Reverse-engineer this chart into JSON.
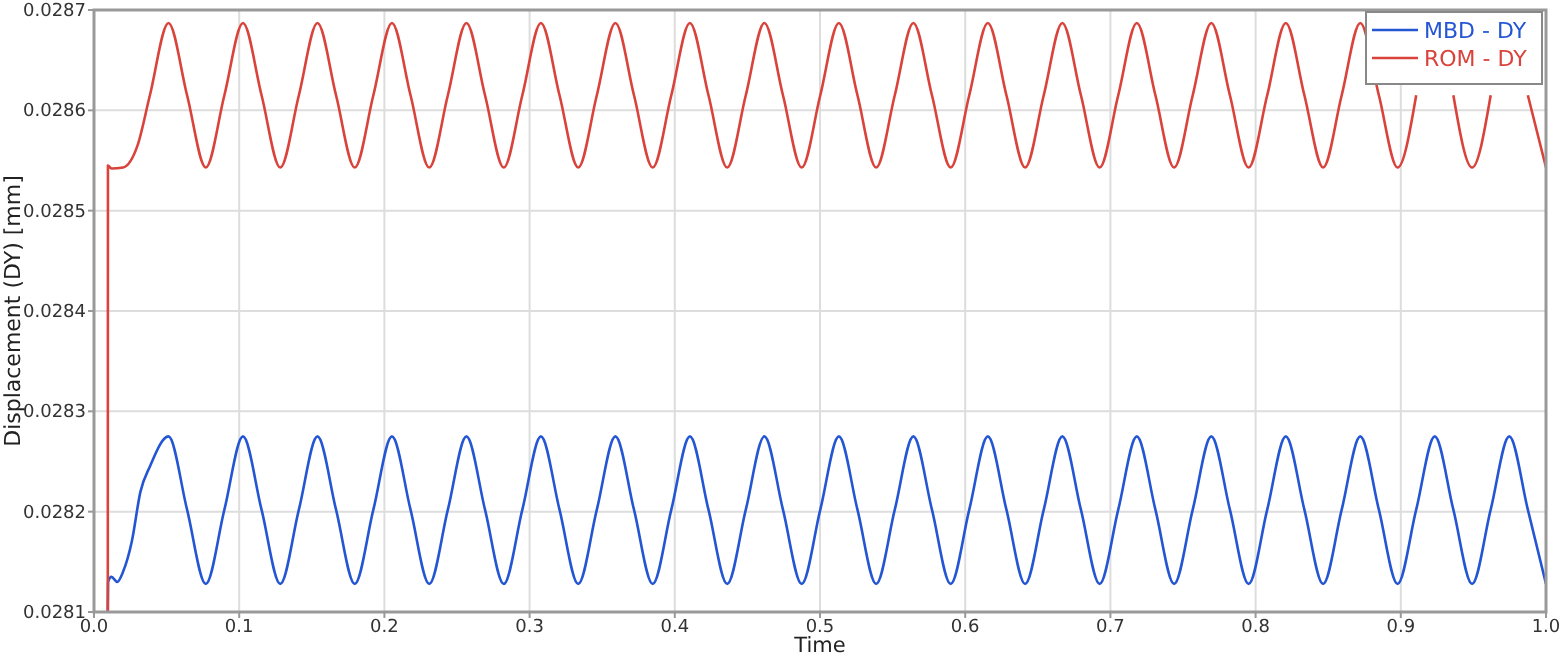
{
  "chart_data": {
    "type": "line",
    "xlabel": "Time",
    "ylabel": "Displacement (DY) [mm]",
    "xlim": [
      0,
      1
    ],
    "ylim": [
      0.0281,
      0.0287
    ],
    "xticks": [
      {
        "value": 0,
        "label": "0.0"
      },
      0.1,
      0.2,
      0.3,
      0.4,
      0.5,
      0.6,
      0.7,
      0.8,
      0.9,
      {
        "value": 1,
        "label": "1.0"
      }
    ],
    "yticks": [
      0.0281,
      0.0282,
      0.0283,
      0.0284,
      0.0285,
      0.0286,
      0.0287
    ],
    "grid": true,
    "legend": "top right",
    "line_style": "solid",
    "marker": "none",
    "series": [
      {
        "name": "MBD - DY",
        "color": "#2456d4",
        "x": [
          0.0095,
          0.0097,
          0.012,
          0.016,
          0.02,
          0.026,
          0.032,
          0.0385,
          0.0513,
          0.0641,
          0.077,
          0.0898,
          0.1026,
          0.1154,
          0.1283,
          0.1411,
          0.1539,
          0.1667,
          0.1796,
          0.1924,
          0.2052,
          0.218,
          0.2309,
          0.2437,
          0.2565,
          0.2693,
          0.2822,
          0.295,
          0.3078,
          0.3206,
          0.3335,
          0.3463,
          0.3591,
          0.3719,
          0.3848,
          0.3976,
          0.4104,
          0.4232,
          0.4361,
          0.4489,
          0.4617,
          0.4745,
          0.4874,
          0.5002,
          0.513,
          0.5258,
          0.5387,
          0.5515,
          0.5643,
          0.5771,
          0.59,
          0.6028,
          0.6156,
          0.6284,
          0.6413,
          0.6541,
          0.6669,
          0.6797,
          0.6926,
          0.7054,
          0.7182,
          0.731,
          0.7439,
          0.7567,
          0.7695,
          0.7823,
          0.7952,
          0.808,
          0.8208,
          0.8336,
          0.8465,
          0.8593,
          0.8721,
          0.8849,
          0.8978,
          0.9106,
          0.9234,
          0.9362,
          0.9491,
          0.9619,
          0.9747,
          0.9875,
          1.0
        ],
        "values": [
          0.0281,
          0.02813,
          0.028135,
          0.02813,
          0.02814,
          0.02817,
          0.02822,
          0.028245,
          0.028275,
          0.028202,
          0.028128,
          0.028202,
          0.028275,
          0.028202,
          0.028128,
          0.028202,
          0.028275,
          0.028202,
          0.028128,
          0.028202,
          0.028275,
          0.028202,
          0.028128,
          0.028202,
          0.028275,
          0.028202,
          0.028128,
          0.028202,
          0.028275,
          0.028202,
          0.028128,
          0.028202,
          0.028275,
          0.028202,
          0.028128,
          0.028202,
          0.028275,
          0.028202,
          0.028128,
          0.028202,
          0.028275,
          0.028202,
          0.028128,
          0.028202,
          0.028275,
          0.028202,
          0.028128,
          0.028202,
          0.028275,
          0.028202,
          0.028128,
          0.028202,
          0.028275,
          0.028202,
          0.028128,
          0.028202,
          0.028275,
          0.028202,
          0.028128,
          0.028202,
          0.028275,
          0.028202,
          0.028128,
          0.028202,
          0.028275,
          0.028202,
          0.028128,
          0.028202,
          0.028275,
          0.028202,
          0.028128,
          0.028202,
          0.028275,
          0.028202,
          0.028128,
          0.028202,
          0.028275,
          0.028202,
          0.028128,
          0.028202,
          0.028275,
          0.028202,
          0.028128
        ]
      },
      {
        "name": "ROM - DY",
        "color": "#d9433b",
        "x": [
          0.0095,
          0.0096,
          0.012,
          0.02,
          0.03,
          0.0385,
          0.0513,
          0.0641,
          0.077,
          0.0898,
          0.1026,
          0.1154,
          0.1283,
          0.1411,
          0.1539,
          0.1667,
          0.1796,
          0.1924,
          0.2052,
          0.218,
          0.2309,
          0.2437,
          0.2565,
          0.2693,
          0.2822,
          0.295,
          0.3078,
          0.3206,
          0.3335,
          0.3463,
          0.3591,
          0.3719,
          0.3848,
          0.3976,
          0.4104,
          0.4232,
          0.4361,
          0.4489,
          0.4617,
          0.4745,
          0.4874,
          0.5002,
          0.513,
          0.5258,
          0.5387,
          0.5515,
          0.5643,
          0.5771,
          0.59,
          0.6028,
          0.6156,
          0.6284,
          0.6413,
          0.6541,
          0.6669,
          0.6797,
          0.6926,
          0.7054,
          0.7182,
          0.731,
          0.7439,
          0.7567,
          0.7695,
          0.7823,
          0.7952,
          0.808,
          0.8208,
          0.8336,
          0.8465,
          0.8593,
          0.8721,
          0.8849,
          0.8978,
          0.9106,
          0.9234,
          0.9362,
          0.9491,
          0.9619,
          0.9747,
          0.9875,
          1.0
        ],
        "values": [
          0.0281,
          0.028545,
          0.028542,
          0.028543,
          0.028565,
          0.028615,
          0.028687,
          0.028615,
          0.028543,
          0.028615,
          0.028687,
          0.028615,
          0.028543,
          0.028615,
          0.028687,
          0.028615,
          0.028543,
          0.028615,
          0.028687,
          0.028615,
          0.028543,
          0.028615,
          0.028687,
          0.028615,
          0.028543,
          0.028615,
          0.028687,
          0.028615,
          0.028543,
          0.028615,
          0.028687,
          0.028615,
          0.028543,
          0.028615,
          0.028687,
          0.028615,
          0.028543,
          0.028615,
          0.028687,
          0.028615,
          0.028543,
          0.028615,
          0.028687,
          0.028615,
          0.028543,
          0.028615,
          0.028687,
          0.028615,
          0.028543,
          0.028615,
          0.028687,
          0.028615,
          0.028543,
          0.028615,
          0.028687,
          0.028615,
          0.028543,
          0.028615,
          0.028687,
          0.028615,
          0.028543,
          0.028615,
          0.028687,
          0.028615,
          0.028543,
          0.028615,
          0.028687,
          0.028615,
          0.028543,
          0.028615,
          0.028687,
          0.028615,
          0.028543,
          0.028615,
          null,
          0.028615,
          0.028543,
          0.028615,
          null,
          0.028615,
          0.028543
        ]
      }
    ]
  }
}
